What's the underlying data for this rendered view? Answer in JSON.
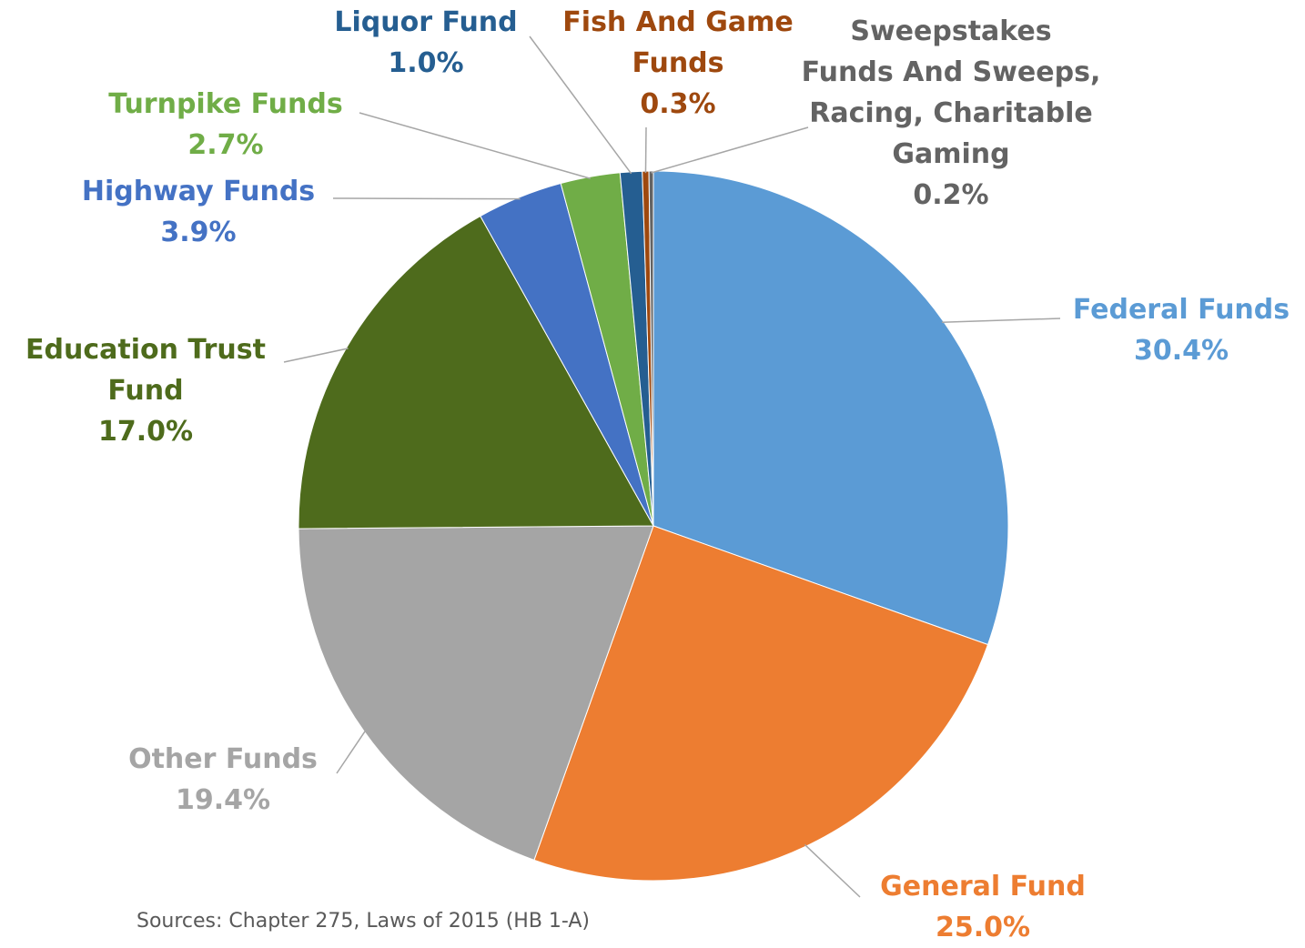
{
  "chart_data": {
    "type": "pie",
    "categories": [
      "Federal Funds",
      "General Fund",
      "Other Funds",
      "Education Trust Fund",
      "Highway Funds",
      "Turnpike Funds",
      "Liquor Fund",
      "Fish And Game Funds",
      "Sweepstakes Funds And Sweeps, Racing, Charitable Gaming"
    ],
    "values": [
      30.4,
      25.0,
      19.4,
      17.0,
      3.9,
      2.7,
      1.0,
      0.3,
      0.2
    ],
    "value_labels": [
      "30.4%",
      "25.0%",
      "19.4%",
      "17.0%",
      "3.9%",
      "2.7%",
      "1.0%",
      "0.3%",
      "0.2%"
    ],
    "colors": [
      "#5b9bd5",
      "#ed7d31",
      "#a5a5a5",
      "#4e6b1c",
      "#4472c4",
      "#70ad47",
      "#255e91",
      "#9e480e",
      "#636363"
    ],
    "source": "Sources: Chapter 275, Laws of 2015 (HB 1-A)"
  }
}
